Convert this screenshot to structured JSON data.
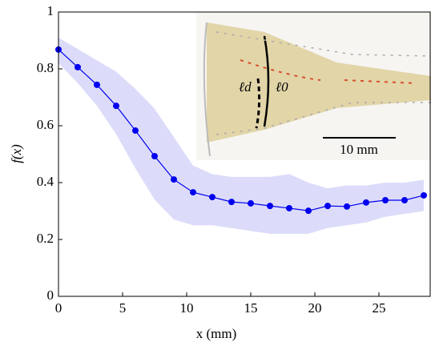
{
  "chart_data": {
    "type": "line",
    "xlabel": "x (mm)",
    "ylabel": "f(x)",
    "x": [
      0,
      1.5,
      3,
      4.5,
      6,
      7.5,
      9,
      10.5,
      12,
      13.5,
      15,
      16.5,
      18,
      19.5,
      21,
      22.5,
      24,
      25.5,
      27,
      28.5
    ],
    "series": [
      {
        "color": "#0000ee",
        "values": [
          0.868,
          0.806,
          0.744,
          0.67,
          0.583,
          0.493,
          0.411,
          0.366,
          0.349,
          0.332,
          0.327,
          0.318,
          0.31,
          0.301,
          0.318,
          0.316,
          0.33,
          0.338,
          0.338,
          0.355
        ],
        "upper": [
          0.91,
          0.87,
          0.83,
          0.79,
          0.73,
          0.66,
          0.56,
          0.46,
          0.43,
          0.42,
          0.42,
          0.42,
          0.43,
          0.4,
          0.38,
          0.39,
          0.39,
          0.4,
          0.4,
          0.41
        ],
        "lower": [
          0.82,
          0.75,
          0.67,
          0.57,
          0.45,
          0.34,
          0.27,
          0.25,
          0.25,
          0.24,
          0.23,
          0.22,
          0.22,
          0.22,
          0.24,
          0.25,
          0.26,
          0.28,
          0.29,
          0.3
        ],
        "band_color": "#dcdcfa"
      }
    ],
    "xlim": [
      0,
      29
    ],
    "ylim": [
      0,
      1
    ],
    "xticks": [
      0,
      5,
      10,
      15,
      20,
      25
    ],
    "yticks": [
      0,
      0.2,
      0.4,
      0.6,
      0.8,
      1
    ],
    "annotations": [
      "ℓd",
      "ℓ0",
      "10 mm"
    ]
  }
}
